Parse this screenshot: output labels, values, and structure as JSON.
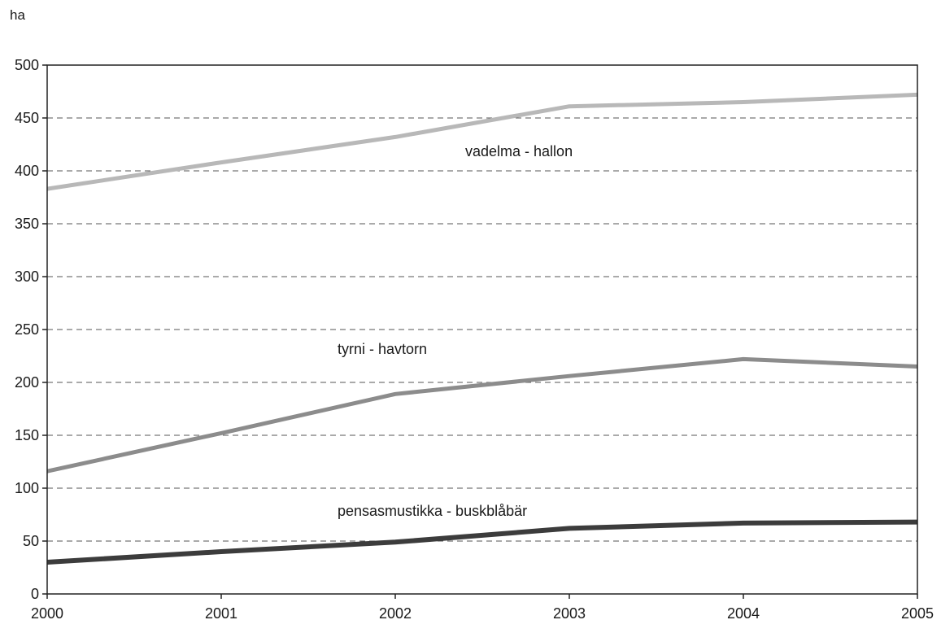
{
  "chart_data": {
    "type": "line",
    "title": "",
    "ylabel": "ha",
    "xlabel": "",
    "x": [
      "2000",
      "2001",
      "2002",
      "2003",
      "2004",
      "2005"
    ],
    "yticks": [
      "0",
      "50",
      "100",
      "150",
      "200",
      "250",
      "300",
      "350",
      "400",
      "450",
      "500"
    ],
    "ylim": [
      0,
      500
    ],
    "grid": true,
    "legend": "inline labels",
    "series": [
      {
        "name": "vadelma - hallon",
        "values": [
          383,
          408,
          432,
          461,
          465,
          472
        ],
        "color": "#b8b8b8"
      },
      {
        "name": "tyrni - havtorn",
        "values": [
          116,
          152,
          189,
          206,
          222,
          215
        ],
        "color": "#8c8c8c"
      },
      {
        "name": "pensasmustikka - buskblåbär",
        "values": [
          30,
          40,
          49,
          62,
          67,
          68
        ],
        "color": "#3c3c3c"
      }
    ]
  }
}
